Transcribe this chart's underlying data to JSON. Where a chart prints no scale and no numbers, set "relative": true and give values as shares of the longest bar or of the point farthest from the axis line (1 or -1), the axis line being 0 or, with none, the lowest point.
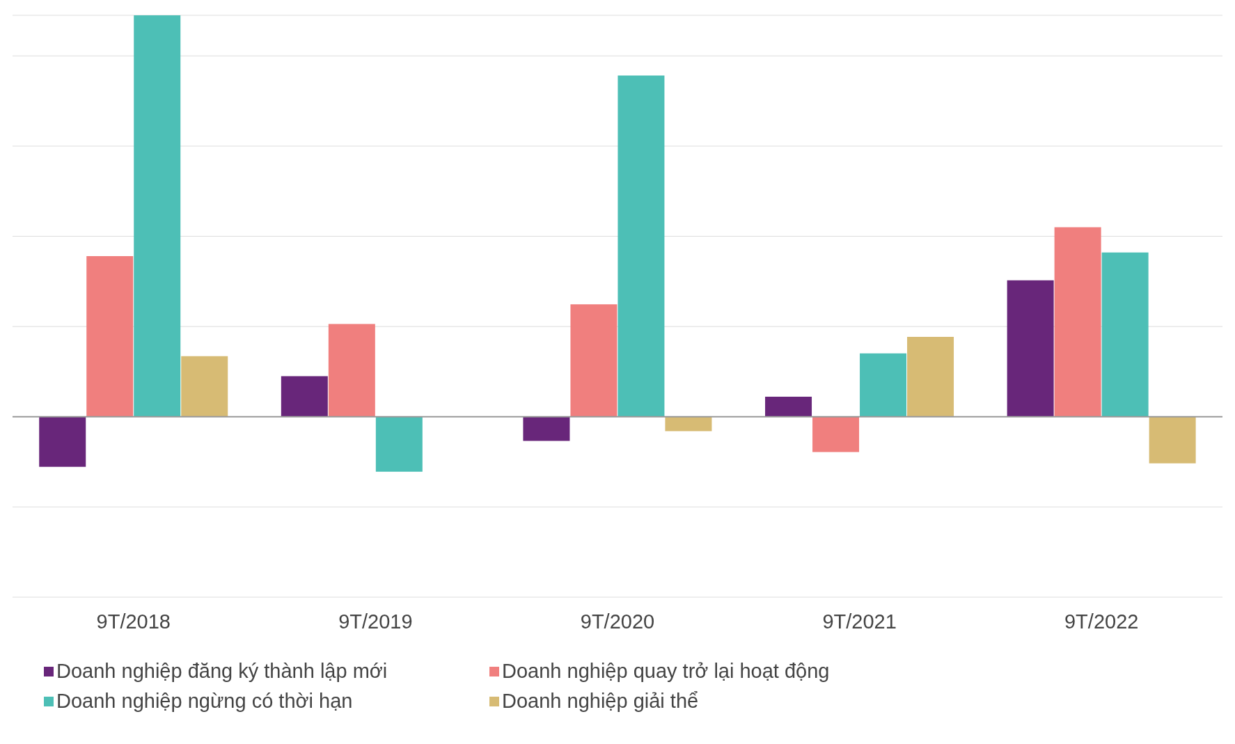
{
  "chart_data": {
    "type": "bar",
    "relative": true,
    "categories": [
      "9T/2018",
      "9T/2019",
      "9T/2020",
      "9T/2021",
      "9T/2022"
    ],
    "series": [
      {
        "name": "Doanh nghiệp đăng ký thành lập mới",
        "color": "#68267a",
        "values": [
          -0.125,
          0.101,
          -0.06,
          0.05,
          0.34
        ]
      },
      {
        "name": "Doanh nghiệp quay trở lại hoạt động",
        "color": "#f07f7e",
        "values": [
          0.4,
          0.231,
          0.28,
          -0.088,
          0.472
        ]
      },
      {
        "name": "Doanh nghiệp ngừng có thời hạn",
        "color": "#4dbfb6",
        "values": [
          1,
          -0.137,
          0.85,
          0.158,
          0.409
        ]
      },
      {
        "name": "Doanh nghiệp giải thể",
        "color": "#d7bb74",
        "values": [
          0.151,
          null,
          -0.036,
          0.199,
          -0.116
        ]
      }
    ],
    "grid": "y",
    "legend": "bottom"
  }
}
